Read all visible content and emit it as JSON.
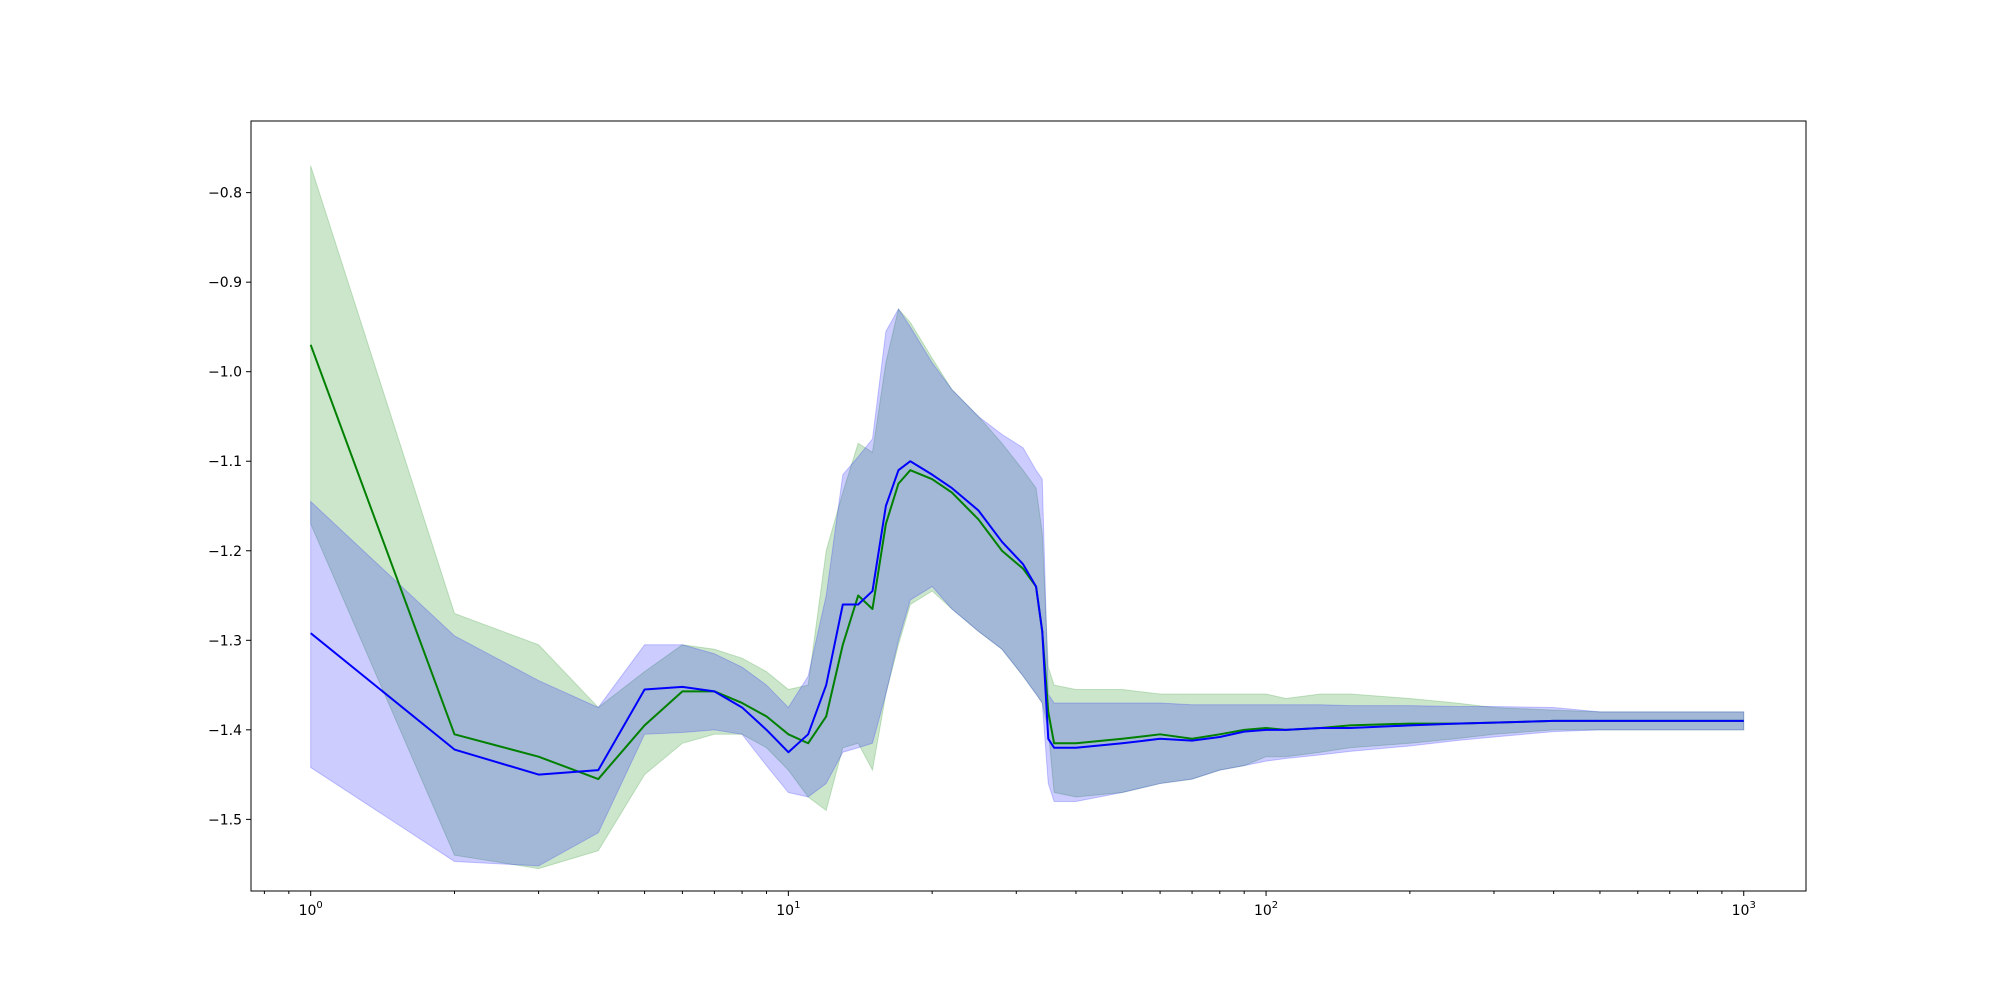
{
  "chart_data": {
    "type": "line",
    "title": "",
    "xlabel": "",
    "ylabel": "",
    "xscale": "log",
    "xlim": [
      0.75,
      1350
    ],
    "ylim": [
      -1.58,
      -0.72
    ],
    "grid": false,
    "legend": "none",
    "x_ticks": [
      {
        "value": 1,
        "base": "10",
        "exp": "0"
      },
      {
        "value": 10,
        "base": "10",
        "exp": "1"
      },
      {
        "value": 100,
        "base": "10",
        "exp": "2"
      },
      {
        "value": 1000,
        "base": "10",
        "exp": "3"
      }
    ],
    "y_ticks": [
      {
        "value": -0.8,
        "label": "−0.8"
      },
      {
        "value": -0.9,
        "label": "−0.9"
      },
      {
        "value": -1.0,
        "label": "−1.0"
      },
      {
        "value": -1.1,
        "label": "−1.1"
      },
      {
        "value": -1.2,
        "label": "−1.2"
      },
      {
        "value": -1.3,
        "label": "−1.3"
      },
      {
        "value": -1.4,
        "label": "−1.4"
      },
      {
        "value": -1.5,
        "label": "−1.5"
      }
    ],
    "series": [
      {
        "color": "#008000",
        "band_color": "#008000",
        "band_opacity": 0.2,
        "x": [
          1,
          2,
          3,
          4,
          5,
          6,
          7,
          8,
          9,
          10,
          11,
          12,
          13,
          14,
          15,
          16,
          17,
          18,
          20,
          22,
          25,
          28,
          31,
          33,
          34,
          35,
          36,
          40,
          50,
          60,
          70,
          80,
          90,
          100,
          110,
          130,
          150,
          200,
          250,
          300,
          400,
          500,
          700,
          1000
        ],
        "y": [
          -0.97,
          -1.405,
          -1.43,
          -1.455,
          -1.395,
          -1.357,
          -1.357,
          -1.37,
          -1.385,
          -1.405,
          -1.415,
          -1.385,
          -1.305,
          -1.25,
          -1.265,
          -1.17,
          -1.125,
          -1.11,
          -1.12,
          -1.135,
          -1.165,
          -1.2,
          -1.22,
          -1.24,
          -1.29,
          -1.38,
          -1.415,
          -1.415,
          -1.41,
          -1.405,
          -1.41,
          -1.405,
          -1.4,
          -1.398,
          -1.4,
          -1.398,
          -1.395,
          -1.393,
          -1.393,
          -1.392,
          -1.39,
          -1.39,
          -1.39,
          -1.39
        ],
        "lower": [
          -1.17,
          -1.54,
          -1.555,
          -1.535,
          -1.45,
          -1.415,
          -1.405,
          -1.405,
          -1.42,
          -1.445,
          -1.475,
          -1.49,
          -1.42,
          -1.415,
          -1.445,
          -1.36,
          -1.305,
          -1.26,
          -1.245,
          -1.265,
          -1.29,
          -1.31,
          -1.34,
          -1.36,
          -1.37,
          -1.4,
          -1.47,
          -1.475,
          -1.47,
          -1.46,
          -1.455,
          -1.445,
          -1.44,
          -1.43,
          -1.43,
          -1.425,
          -1.42,
          -1.415,
          -1.41,
          -1.405,
          -1.4,
          -1.4,
          -1.4,
          -1.4
        ],
        "upper": [
          -0.77,
          -1.27,
          -1.305,
          -1.375,
          -1.335,
          -1.305,
          -1.31,
          -1.32,
          -1.335,
          -1.355,
          -1.35,
          -1.2,
          -1.135,
          -1.08,
          -1.09,
          -0.99,
          -0.93,
          -0.945,
          -0.985,
          -1.02,
          -1.05,
          -1.08,
          -1.11,
          -1.13,
          -1.18,
          -1.33,
          -1.35,
          -1.355,
          -1.355,
          -1.36,
          -1.36,
          -1.36,
          -1.36,
          -1.36,
          -1.365,
          -1.36,
          -1.36,
          -1.365,
          -1.37,
          -1.375,
          -1.378,
          -1.38,
          -1.38,
          -1.38
        ]
      },
      {
        "color": "#0000ff",
        "band_color": "#0000ff",
        "band_opacity": 0.2,
        "x": [
          1,
          2,
          3,
          4,
          5,
          6,
          7,
          8,
          9,
          10,
          11,
          12,
          13,
          14,
          15,
          16,
          17,
          18,
          20,
          22,
          25,
          28,
          31,
          33,
          34,
          35,
          36,
          40,
          50,
          60,
          70,
          80,
          90,
          100,
          110,
          130,
          150,
          200,
          250,
          300,
          400,
          500,
          700,
          1000
        ],
        "y": [
          -1.292,
          -1.422,
          -1.45,
          -1.445,
          -1.355,
          -1.352,
          -1.357,
          -1.375,
          -1.4,
          -1.425,
          -1.405,
          -1.35,
          -1.26,
          -1.26,
          -1.245,
          -1.15,
          -1.11,
          -1.1,
          -1.115,
          -1.13,
          -1.155,
          -1.19,
          -1.215,
          -1.24,
          -1.29,
          -1.41,
          -1.42,
          -1.42,
          -1.415,
          -1.41,
          -1.412,
          -1.408,
          -1.402,
          -1.4,
          -1.4,
          -1.398,
          -1.398,
          -1.395,
          -1.393,
          -1.392,
          -1.39,
          -1.39,
          -1.39,
          -1.39
        ],
        "lower": [
          -1.442,
          -1.547,
          -1.552,
          -1.515,
          -1.405,
          -1.403,
          -1.4,
          -1.405,
          -1.44,
          -1.47,
          -1.475,
          -1.46,
          -1.425,
          -1.42,
          -1.415,
          -1.36,
          -1.3,
          -1.255,
          -1.24,
          -1.265,
          -1.29,
          -1.31,
          -1.34,
          -1.36,
          -1.37,
          -1.46,
          -1.48,
          -1.48,
          -1.47,
          -1.46,
          -1.455,
          -1.445,
          -1.44,
          -1.435,
          -1.432,
          -1.428,
          -1.424,
          -1.418,
          -1.412,
          -1.408,
          -1.402,
          -1.4,
          -1.4,
          -1.4
        ],
        "upper": [
          -1.145,
          -1.295,
          -1.345,
          -1.375,
          -1.305,
          -1.305,
          -1.315,
          -1.33,
          -1.35,
          -1.375,
          -1.34,
          -1.25,
          -1.115,
          -1.095,
          -1.075,
          -0.955,
          -0.93,
          -0.95,
          -0.99,
          -1.02,
          -1.05,
          -1.07,
          -1.085,
          -1.11,
          -1.12,
          -1.36,
          -1.37,
          -1.37,
          -1.37,
          -1.37,
          -1.372,
          -1.372,
          -1.372,
          -1.372,
          -1.372,
          -1.372,
          -1.373,
          -1.373,
          -1.374,
          -1.374,
          -1.375,
          -1.38,
          -1.38,
          -1.38
        ]
      }
    ]
  }
}
